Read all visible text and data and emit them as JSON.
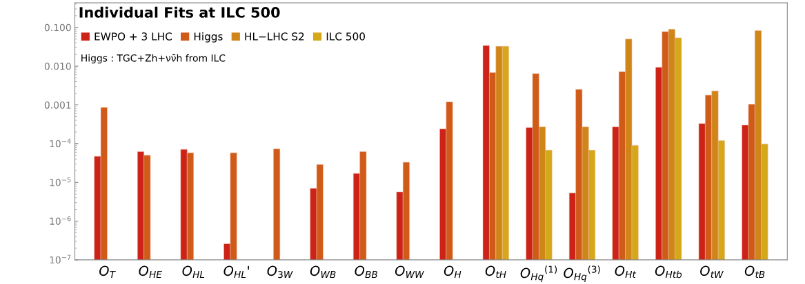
{
  "chart_data": {
    "type": "bar",
    "title": "Individual Fits at ILC 500",
    "categories": [
      "O$_{T}$",
      "O$_{HE}$",
      "O$_{HL}$",
      "O$_{HL}$'",
      "O$_{3W}$",
      "O$_{WB}$",
      "O$_{BB}$",
      "O$_{WW}$",
      "O$_{H}$",
      "O$_{tH}$",
      "O$_{Hq}$$^{(1)}$",
      "O$_{Hq}$$^{(3)}$",
      "O$_{Ht}$",
      "O$_{Htb}$",
      "O$_{tW}$",
      "O$_{tB}$"
    ],
    "series": [
      {
        "name": "EWPO + 3 LHC",
        "color": "#cc2218",
        "values": [
          4.7e-05,
          6.2e-05,
          7.1e-05,
          2.6e-07,
          null,
          7e-06,
          1.7e-05,
          5.7e-06,
          0.00024,
          0.034,
          0.00026,
          5.3e-06,
          0.00027,
          0.0093,
          0.00033,
          0.0003
        ]
      },
      {
        "name": "Higgs",
        "color": "#d05a18",
        "values": [
          0.00086,
          5e-05,
          5.8e-05,
          5.8e-05,
          7.3e-05,
          2.9e-05,
          6.2e-05,
          3.3e-05,
          0.0012,
          0.0068,
          0.0064,
          0.0025,
          0.0072,
          0.078,
          0.0018,
          0.00104
        ]
      },
      {
        "name": "HL−LHC S2",
        "color": "#d08518",
        "values": [
          null,
          null,
          null,
          null,
          null,
          null,
          null,
          null,
          null,
          0.0325,
          0.00027,
          0.00027,
          0.05,
          0.09,
          0.0023,
          0.083
        ]
      },
      {
        "name": "ILC 500",
        "color": "#d4a818",
        "values": [
          null,
          null,
          null,
          null,
          null,
          null,
          null,
          null,
          null,
          0.0325,
          6.8e-05,
          6.8e-05,
          9e-05,
          0.054,
          0.00012,
          9.8e-05
        ]
      }
    ],
    "log": true,
    "ylim": [
      1e-07,
      0.43
    ],
    "yticks": [
      {
        "value": 1e-07,
        "label": "10$^{−7}$"
      },
      {
        "value": 1e-06,
        "label": "10$^{−6}$"
      },
      {
        "value": 1e-05,
        "label": "10$^{−5}$"
      },
      {
        "value": 0.0001,
        "label": "10$^{−4}$"
      },
      {
        "value": 0.001,
        "label": "0.001"
      },
      {
        "value": 0.01,
        "label": "0.010"
      },
      {
        "value": 0.1,
        "label": "0.100"
      }
    ],
    "annotations": [
      "Higgs : TGC+Zh+νν̄h from ILC"
    ],
    "legend": "top left",
    "grid": false
  }
}
